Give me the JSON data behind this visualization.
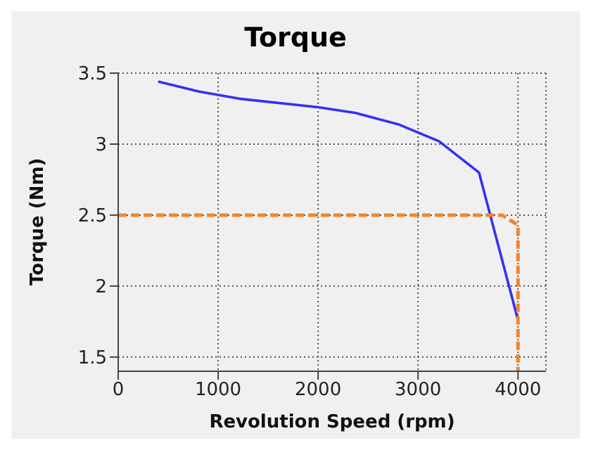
{
  "chart_data": {
    "type": "line",
    "title": "Torque",
    "xlabel": "Revolution Speed (rpm)",
    "ylabel": "Torque (Nm)",
    "xlim": [
      0,
      4280
    ],
    "ylim": [
      1.4,
      3.5
    ],
    "xticks": [
      0,
      1000,
      2000,
      3000,
      4000
    ],
    "yticks": [
      1.5,
      2,
      2.5,
      3,
      3.5
    ],
    "grid": true,
    "marker": "none",
    "series": [
      {
        "color": "#3333ee",
        "line_style": "solid",
        "x": [
          400,
          810,
          1210,
          2000,
          2370,
          2800,
          3210,
          3610,
          4000
        ],
        "values": [
          3.44,
          3.37,
          3.32,
          3.26,
          3.22,
          3.14,
          3.02,
          2.8,
          1.76
        ]
      },
      {
        "color": "#f5842a",
        "line_style": "dashed",
        "x": [
          0,
          3840,
          4000,
          4000
        ],
        "values": [
          2.5,
          2.5,
          2.43,
          1.4
        ]
      }
    ]
  }
}
